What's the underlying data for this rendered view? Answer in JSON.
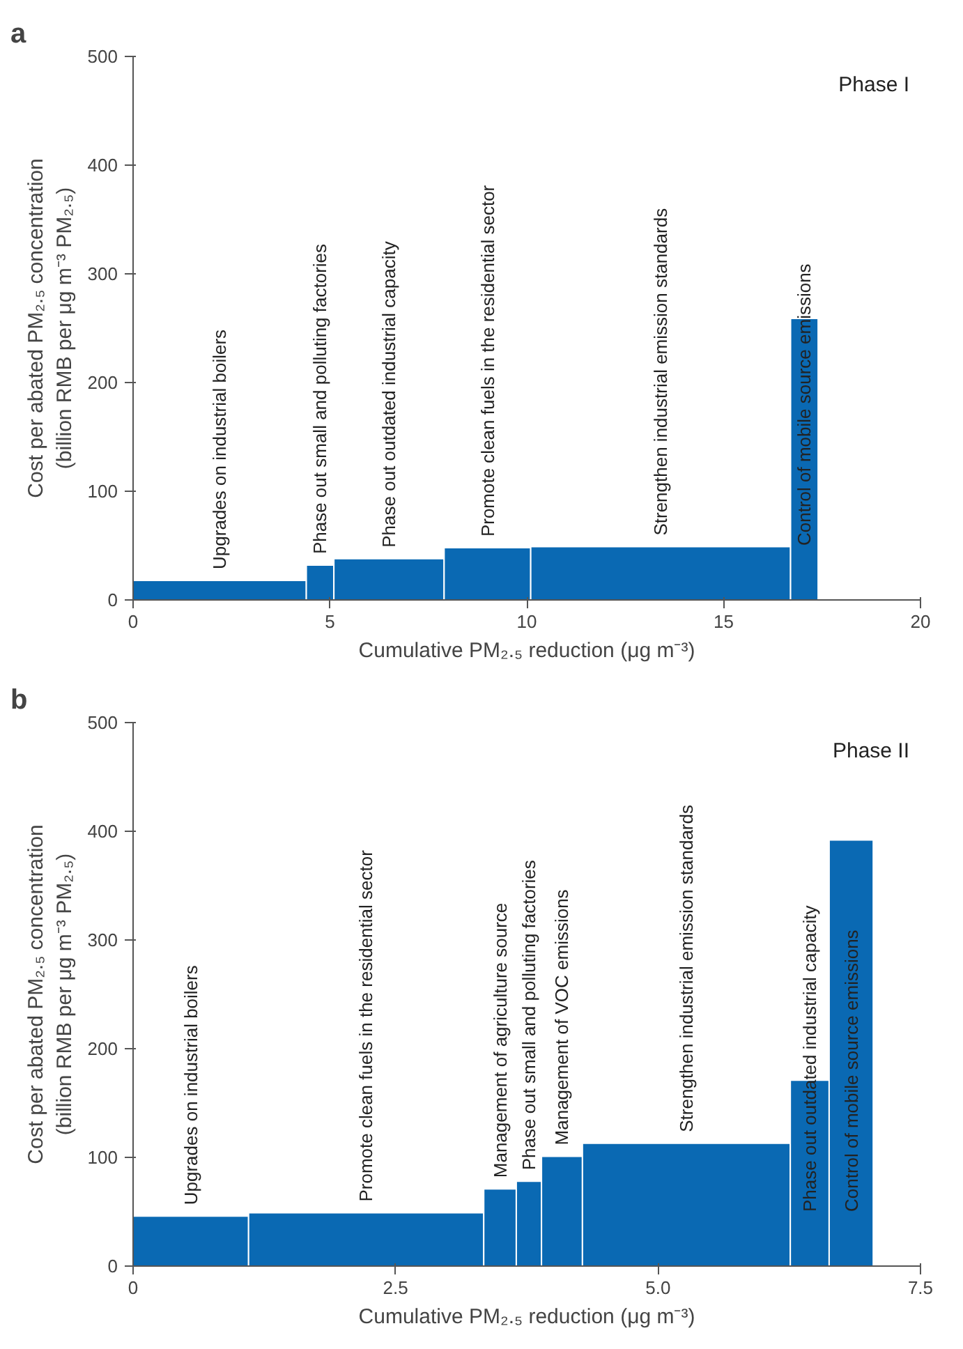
{
  "chart_data": [
    {
      "type": "histogram",
      "title": "a",
      "color": "#0a69b3",
      "bins": [
        0,
        4.4,
        5.1,
        7.9,
        10.1,
        16.7,
        17.4
      ],
      "values": [
        18,
        32,
        38,
        48,
        49,
        259
      ],
      "xlim": [
        0,
        20
      ],
      "xticks": [
        0,
        5,
        10,
        15,
        20
      ],
      "ylim": [
        0,
        500
      ],
      "yticks": [
        0,
        100,
        200,
        300,
        400,
        500
      ],
      "grid": false,
      "xlabel": "Cumulative PM₂.₅ reduction (μg m⁻³)",
      "ylabel": "Cost per abated PM₂.₅ concentration\n(billion RMB per μg m⁻³ PM₂.₅)",
      "annotations": [
        "Upgrades on industrial boilers",
        "Phase out small and polluting factories",
        "Phase out outdated industrial capacity",
        "Promote clean fuels in the residential sector",
        "Strengthen industrial emission standards",
        "Control of mobile source emissions",
        "Phase I"
      ]
    },
    {
      "type": "histogram",
      "title": "b",
      "color": "#0a69b3",
      "bins": [
        0,
        1.1,
        3.34,
        3.65,
        3.89,
        4.28,
        6.26,
        6.63,
        7.05
      ],
      "values": [
        46,
        49,
        71,
        78,
        101,
        113,
        171,
        392
      ],
      "xlim": [
        0,
        7.5
      ],
      "xticks": [
        {
          "value": 0,
          "label": "0"
        },
        2.5,
        {
          "value": 5,
          "label": "5.0"
        },
        7.5
      ],
      "ylim": [
        0,
        500
      ],
      "yticks": [
        0,
        100,
        200,
        300,
        400,
        500
      ],
      "grid": false,
      "xlabel": "Cumulative PM₂.₅ reduction (μg m⁻³)",
      "ylabel": "Cost per abated PM₂.₅ concentration\n(billion RMB per μg m⁻³ PM₂.₅)",
      "annotations": [
        "Upgrades on industrial boilers",
        "Promote clean fuels in the residential sector",
        "Management of agriculture source",
        "Phase out small and polluting factories",
        "Management of VOC emissions",
        "Strengthen industrial emission standards",
        "Phase out outdated industrial capacity",
        "Control of mobile source emissions",
        "Phase II"
      ]
    }
  ]
}
